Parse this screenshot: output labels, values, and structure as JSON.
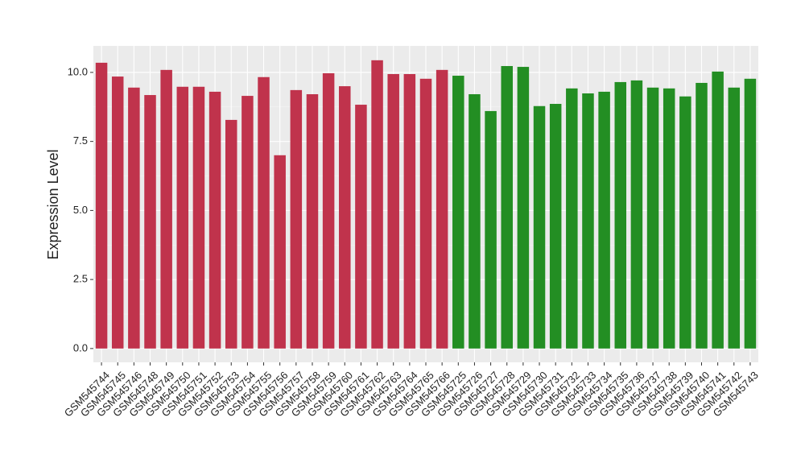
{
  "chart_data": {
    "type": "bar",
    "y_label": "Expression Level",
    "categories": [
      "GSM545744",
      "GSM545745",
      "GSM545746",
      "GSM545748",
      "GSM545749",
      "GSM545750",
      "GSM545751",
      "GSM545752",
      "GSM545753",
      "GSM545754",
      "GSM545755",
      "GSM545756",
      "GSM545757",
      "GSM545758",
      "GSM545759",
      "GSM545760",
      "GSM545761",
      "GSM545762",
      "GSM545763",
      "GSM545764",
      "GSM545765",
      "GSM545766",
      "GSM545725",
      "GSM545726",
      "GSM545727",
      "GSM545728",
      "GSM545729",
      "GSM545730",
      "GSM545731",
      "GSM545732",
      "GSM545733",
      "GSM545734",
      "GSM545735",
      "GSM545736",
      "GSM545737",
      "GSM545738",
      "GSM545739",
      "GSM545740",
      "GSM545741",
      "GSM545742",
      "GSM545743"
    ],
    "values": [
      10.35,
      9.85,
      9.45,
      9.18,
      10.09,
      9.48,
      9.48,
      9.3,
      8.28,
      9.15,
      9.83,
      7.0,
      9.36,
      9.21,
      9.97,
      9.5,
      8.83,
      10.44,
      9.94,
      9.94,
      9.77,
      10.09,
      9.88,
      9.21,
      8.6,
      10.23,
      10.2,
      8.78,
      8.86,
      9.42,
      9.24,
      9.3,
      9.65,
      9.71,
      9.45,
      9.42,
      9.13,
      9.62,
      10.03,
      9.45,
      9.77
    ],
    "colors": [
      "#c0334c",
      "#c0334c",
      "#c0334c",
      "#c0334c",
      "#c0334c",
      "#c0334c",
      "#c0334c",
      "#c0334c",
      "#c0334c",
      "#c0334c",
      "#c0334c",
      "#c0334c",
      "#c0334c",
      "#c0334c",
      "#c0334c",
      "#c0334c",
      "#c0334c",
      "#c0334c",
      "#c0334c",
      "#c0334c",
      "#c0334c",
      "#c0334c",
      "#238e23",
      "#238e23",
      "#238e23",
      "#238e23",
      "#238e23",
      "#238e23",
      "#238e23",
      "#238e23",
      "#238e23",
      "#238e23",
      "#238e23",
      "#238e23",
      "#238e23",
      "#238e23",
      "#238e23",
      "#238e23",
      "#238e23",
      "#238e23",
      "#238e23"
    ],
    "ylim": [
      -0.5,
      10.96
    ],
    "yticks": [
      {
        "value": 0,
        "label": "0.0"
      },
      {
        "value": 2.5,
        "label": "2.5"
      },
      {
        "value": 5,
        "label": "5.0"
      },
      {
        "value": 7.5,
        "label": "7.5"
      },
      {
        "value": 10,
        "label": "10.0"
      }
    ],
    "grid": true
  }
}
